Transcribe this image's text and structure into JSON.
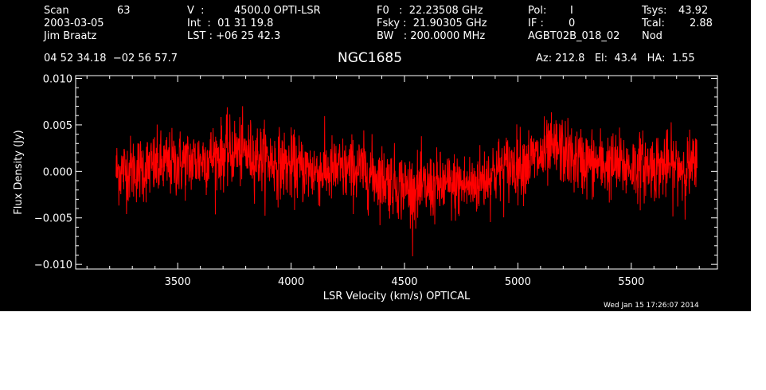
{
  "header": {
    "scan_label": "Scan",
    "scan_number": "63",
    "date": "2003-03-05",
    "observer": "Jim Braatz",
    "v_label": "V  :",
    "v_value": "4500.0 OPTI-LSR",
    "int_line": "Int  :  01 31 19.8",
    "lst_line": "LST : +06 25 42.3",
    "f0_line": "F0   :  22.23508 GHz",
    "fsky_line": "Fsky :  21.90305 GHz",
    "bw_line": "BW   : 200.0000 MHz",
    "pol_label": "Pol:",
    "pol_value": "I",
    "if_label": "IF :",
    "if_value": "0",
    "project": "AGBT02B_018_02",
    "tsys_label": "Tsys:",
    "tsys_value": "43.92",
    "tcal_label": "Tcal:",
    "tcal_value": "2.88",
    "mode": "Nod",
    "coords": "04 52 34.18  −02 56 57.7",
    "source": "NGC1685",
    "az_el_ha": "Az: 212.8   El:  43.4   HA:  1.55"
  },
  "timestamp": "Wed Jan 15 17:26:07 2014",
  "colors": {
    "background": "#000000",
    "axes": "#ffffff",
    "trace": "#ff0000"
  },
  "chart_data": {
    "type": "line",
    "title": "NGC1685",
    "xlabel": "LSR Velocity (km/s) OPTICAL",
    "ylabel": "Flux Density (Jy)",
    "xlim": [
      3050,
      5880
    ],
    "ylim": [
      -0.0105,
      0.0103
    ],
    "x_ticks": [
      3500,
      4000,
      4500,
      5000,
      5500
    ],
    "x_tick_labels": [
      "3500",
      "4000",
      "4500",
      "5000",
      "5500"
    ],
    "y_ticks": [
      -0.01,
      -0.005,
      0.0,
      0.005,
      0.01
    ],
    "y_tick_labels": [
      "−0.010",
      "−0.005",
      "0.000",
      "0.005",
      "0.010"
    ],
    "grid": false,
    "series": [
      {
        "x_range": [
          3228,
          5790
        ],
        "noise_rms": 0.0018,
        "baseline": {
          "x": [
            3230,
            3400,
            3600,
            3750,
            3830,
            3950,
            4100,
            4300,
            4450,
            4550,
            4650,
            4800,
            4900,
            5000,
            5100,
            5180,
            5250,
            5350,
            5500,
            5650,
            5790
          ],
          "y": [
            0.0,
            0.0005,
            0.0012,
            0.0022,
            0.0018,
            0.0008,
            0.0,
            0.0002,
            -0.0012,
            -0.002,
            -0.0016,
            -0.0015,
            0.0,
            0.0008,
            0.0015,
            0.0025,
            0.0012,
            0.0008,
            0.0005,
            0.0006,
            0.0004
          ]
        }
      }
    ]
  }
}
